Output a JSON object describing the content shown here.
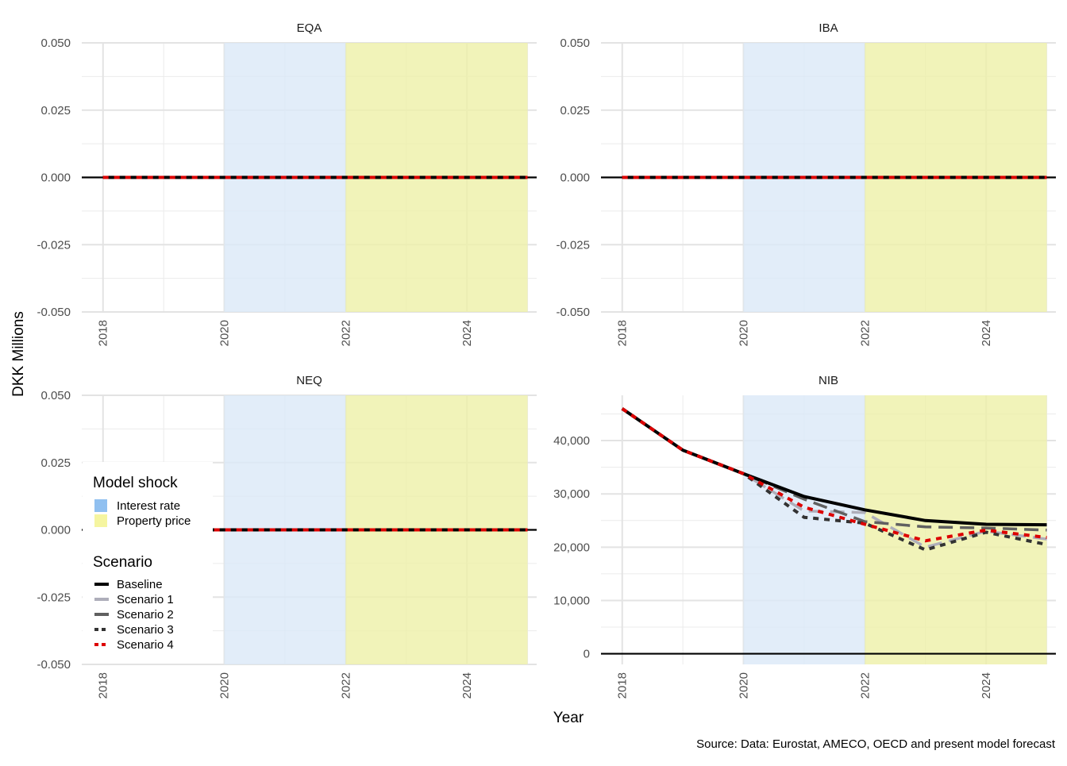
{
  "chart_data": {
    "type": "line",
    "ylabel": "DKK Millions",
    "xlabel": "Year",
    "caption": "Source: Data: Eurostat, AMECO, OECD and present model forecast",
    "x": [
      2018,
      2019,
      2020,
      2021,
      2022,
      2023,
      2024,
      2025
    ],
    "x_ticks": [
      2018,
      2020,
      2022,
      2024
    ],
    "x_tick_labels": [
      "2018",
      "2020",
      "2022",
      "2024"
    ],
    "xlim": [
      2017.65,
      2025.15
    ],
    "shocks": [
      {
        "name": "Interest rate",
        "start": 2020,
        "end": 2022,
        "color": "#90c0f0"
      },
      {
        "name": "Property price",
        "start": 2022,
        "end": 2025,
        "color": "#f5f5a0"
      }
    ],
    "legend": {
      "shock_title": "Model shock",
      "scenario_title": "Scenario",
      "placement": "inside bottom-left of NEQ panel"
    },
    "series_styles": [
      {
        "name": "Baseline",
        "color": "#000000",
        "dash": "solid"
      },
      {
        "name": "Scenario 1",
        "color": "#aeaeba",
        "dash": "long-dash"
      },
      {
        "name": "Scenario 2",
        "color": "#606060",
        "dash": "long-dash"
      },
      {
        "name": "Scenario 3",
        "color": "#333333",
        "dash": "short-dash"
      },
      {
        "name": "Scenario 4",
        "color": "#dd0000",
        "dash": "short-dash"
      }
    ],
    "panels": [
      {
        "title": "EQA",
        "ylim": [
          -0.05,
          0.05
        ],
        "y_ticks": [
          -0.05,
          -0.025,
          0,
          0.025,
          0.05
        ],
        "y_tick_labels": [
          "-0.050",
          "-0.025",
          "0.000",
          "0.025",
          "0.050"
        ],
        "series": [
          {
            "name": "Baseline",
            "values": [
              0,
              0,
              0,
              0,
              0,
              0,
              0,
              0
            ]
          },
          {
            "name": "Scenario 1",
            "values": [
              0,
              0,
              0,
              0,
              0,
              0,
              0,
              0
            ]
          },
          {
            "name": "Scenario 2",
            "values": [
              0,
              0,
              0,
              0,
              0,
              0,
              0,
              0
            ]
          },
          {
            "name": "Scenario 3",
            "values": [
              0,
              0,
              0,
              0,
              0,
              0,
              0,
              0
            ]
          },
          {
            "name": "Scenario 4",
            "values": [
              0,
              0,
              0,
              0,
              0,
              0,
              0,
              0
            ]
          }
        ]
      },
      {
        "title": "IBA",
        "ylim": [
          -0.05,
          0.05
        ],
        "y_ticks": [
          -0.05,
          -0.025,
          0,
          0.025,
          0.05
        ],
        "y_tick_labels": [
          "-0.050",
          "-0.025",
          "0.000",
          "0.025",
          "0.050"
        ],
        "series": [
          {
            "name": "Baseline",
            "values": [
              0,
              0,
              0,
              0,
              0,
              0,
              0,
              0
            ]
          },
          {
            "name": "Scenario 1",
            "values": [
              0,
              0,
              0,
              0,
              0,
              0,
              0,
              0
            ]
          },
          {
            "name": "Scenario 2",
            "values": [
              0,
              0,
              0,
              0,
              0,
              0,
              0,
              0
            ]
          },
          {
            "name": "Scenario 3",
            "values": [
              0,
              0,
              0,
              0,
              0,
              0,
              0,
              0
            ]
          },
          {
            "name": "Scenario 4",
            "values": [
              0,
              0,
              0,
              0,
              0,
              0,
              0,
              0
            ]
          }
        ]
      },
      {
        "title": "NEQ",
        "ylim": [
          -0.05,
          0.05
        ],
        "y_ticks": [
          -0.05,
          -0.025,
          0,
          0.025,
          0.05
        ],
        "y_tick_labels": [
          "-0.050",
          "-0.025",
          "0.000",
          "0.025",
          "0.050"
        ],
        "series": [
          {
            "name": "Baseline",
            "values": [
              0,
              0,
              0,
              0,
              0,
              0,
              0,
              0
            ]
          },
          {
            "name": "Scenario 1",
            "values": [
              0,
              0,
              0,
              0,
              0,
              0,
              0,
              0
            ]
          },
          {
            "name": "Scenario 2",
            "values": [
              0,
              0,
              0,
              0,
              0,
              0,
              0,
              0
            ]
          },
          {
            "name": "Scenario 3",
            "values": [
              0,
              0,
              0,
              0,
              0,
              0,
              0,
              0
            ]
          },
          {
            "name": "Scenario 4",
            "values": [
              0,
              0,
              0,
              0,
              0,
              0,
              0,
              0
            ]
          }
        ]
      },
      {
        "title": "NIB",
        "ylim": [
          -2000,
          48500
        ],
        "y_ticks": [
          0,
          10000,
          20000,
          30000,
          40000
        ],
        "y_tick_labels": [
          "0",
          "10,000",
          "20,000",
          "30,000",
          "40,000"
        ],
        "series": [
          {
            "name": "Baseline",
            "values": [
              46000,
              38200,
              33800,
              29500,
              27000,
              25000,
              24300,
              24200
            ]
          },
          {
            "name": "Scenario 1",
            "values": [
              46000,
              38200,
              33800,
              26800,
              26500,
              20000,
              23000,
              21500
            ]
          },
          {
            "name": "Scenario 2",
            "values": [
              46000,
              38200,
              33800,
              29000,
              24800,
              23800,
              23600,
              23200
            ]
          },
          {
            "name": "Scenario 3",
            "values": [
              46000,
              38200,
              33800,
              25600,
              24500,
              19500,
              22800,
              20500
            ]
          },
          {
            "name": "Scenario 4",
            "values": [
              46000,
              38200,
              33800,
              27500,
              24300,
              21200,
              23200,
              21800
            ]
          }
        ]
      }
    ]
  }
}
